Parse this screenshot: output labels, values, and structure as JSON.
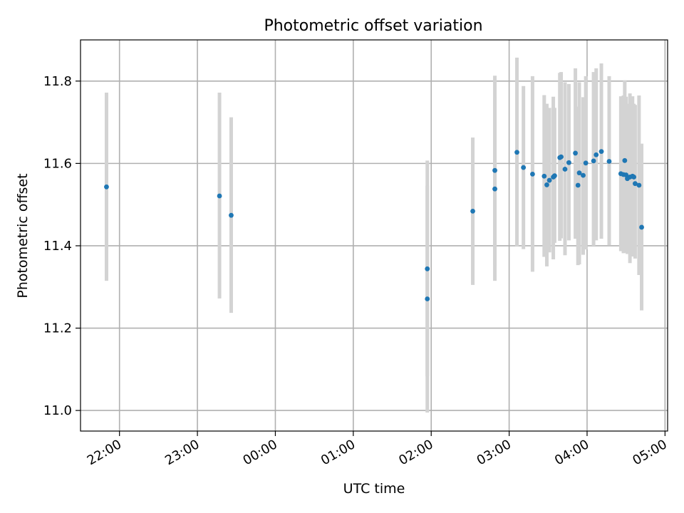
{
  "chart_data": {
    "type": "scatter",
    "title": "Photometric offset variation",
    "xlabel": "UTC time",
    "ylabel": "Photometric offset",
    "x_axis_type": "time",
    "xlim": [
      "21:30",
      "05:02"
    ],
    "ylim": [
      10.95,
      11.9
    ],
    "x_ticks": [
      "22:00",
      "23:00",
      "00:00",
      "01:00",
      "02:00",
      "03:00",
      "04:00",
      "05:00"
    ],
    "y_ticks": [
      "11.0",
      "11.2",
      "11.4",
      "11.6",
      "11.8"
    ],
    "grid": true,
    "colors": {
      "point": "#1f77b4",
      "errorbar": "#d3d3d3",
      "grid": "#b0b0b0",
      "axes": "#000000"
    },
    "series": [
      {
        "points": [
          {
            "x": "21:50",
            "y": 11.543,
            "ylo": 11.315,
            "yhi": 11.772
          },
          {
            "x": "23:17",
            "y": 11.521,
            "ylo": 11.272,
            "yhi": 11.772
          },
          {
            "x": "23:26",
            "y": 11.474,
            "ylo": 11.237,
            "yhi": 11.712
          },
          {
            "x": "01:57",
            "y": 11.271,
            "ylo": 10.995,
            "yhi": 11.546
          },
          {
            "x": "01:57",
            "y": 11.344,
            "ylo": 11.083,
            "yhi": 11.607
          },
          {
            "x": "02:32",
            "y": 11.484,
            "ylo": 11.305,
            "yhi": 11.663
          },
          {
            "x": "02:49",
            "y": 11.538,
            "ylo": 11.315,
            "yhi": 11.761
          },
          {
            "x": "02:49",
            "y": 11.583,
            "ylo": 11.352,
            "yhi": 11.813
          },
          {
            "x": "03:06",
            "y": 11.627,
            "ylo": 11.398,
            "yhi": 11.857
          },
          {
            "x": "03:11",
            "y": 11.59,
            "ylo": 11.392,
            "yhi": 11.788
          },
          {
            "x": "03:18",
            "y": 11.574,
            "ylo": 11.337,
            "yhi": 11.812
          },
          {
            "x": "03:27",
            "y": 11.569,
            "ylo": 11.373,
            "yhi": 11.766
          },
          {
            "x": "03:29",
            "y": 11.548,
            "ylo": 11.35,
            "yhi": 11.745
          },
          {
            "x": "03:31",
            "y": 11.559,
            "ylo": 11.384,
            "yhi": 11.735
          },
          {
            "x": "03:34",
            "y": 11.567,
            "ylo": 11.367,
            "yhi": 11.762
          },
          {
            "x": "03:35",
            "y": 11.57,
            "ylo": 11.407,
            "yhi": 11.735
          },
          {
            "x": "03:39",
            "y": 11.614,
            "ylo": 11.412,
            "yhi": 11.82
          },
          {
            "x": "03:40",
            "y": 11.616,
            "ylo": 11.418,
            "yhi": 11.822
          },
          {
            "x": "03:43",
            "y": 11.586,
            "ylo": 11.377,
            "yhi": 11.797
          },
          {
            "x": "03:46",
            "y": 11.602,
            "ylo": 11.413,
            "yhi": 11.793
          },
          {
            "x": "03:51",
            "y": 11.625,
            "ylo": 11.417,
            "yhi": 11.831
          },
          {
            "x": "03:53",
            "y": 11.547,
            "ylo": 11.353,
            "yhi": 11.738
          },
          {
            "x": "03:54",
            "y": 11.577,
            "ylo": 11.355,
            "yhi": 11.797
          },
          {
            "x": "03:57",
            "y": 11.571,
            "ylo": 11.378,
            "yhi": 11.761
          },
          {
            "x": "03:59",
            "y": 11.601,
            "ylo": 11.391,
            "yhi": 11.812
          },
          {
            "x": "04:05",
            "y": 11.606,
            "ylo": 11.4,
            "yhi": 11.822
          },
          {
            "x": "04:07",
            "y": 11.621,
            "ylo": 11.413,
            "yhi": 11.831
          },
          {
            "x": "04:11",
            "y": 11.629,
            "ylo": 11.417,
            "yhi": 11.843
          },
          {
            "x": "04:17",
            "y": 11.605,
            "ylo": 11.401,
            "yhi": 11.812
          },
          {
            "x": "04:26",
            "y": 11.575,
            "ylo": 11.387,
            "yhi": 11.763
          },
          {
            "x": "04:28",
            "y": 11.573,
            "ylo": 11.382,
            "yhi": 11.765
          },
          {
            "x": "04:29",
            "y": 11.607,
            "ylo": 11.409,
            "yhi": 11.802
          },
          {
            "x": "04:30",
            "y": 11.572,
            "ylo": 11.383,
            "yhi": 11.762
          },
          {
            "x": "04:31",
            "y": 11.563,
            "ylo": 11.38,
            "yhi": 11.745
          },
          {
            "x": "04:33",
            "y": 11.567,
            "ylo": 11.358,
            "yhi": 11.77
          },
          {
            "x": "04:35",
            "y": 11.569,
            "ylo": 11.374,
            "yhi": 11.763
          },
          {
            "x": "04:36",
            "y": 11.567,
            "ylo": 11.374,
            "yhi": 11.745
          },
          {
            "x": "04:37",
            "y": 11.551,
            "ylo": 11.369,
            "yhi": 11.742
          },
          {
            "x": "04:40",
            "y": 11.547,
            "ylo": 11.329,
            "yhi": 11.765
          },
          {
            "x": "04:42",
            "y": 11.445,
            "ylo": 11.243,
            "yhi": 11.648
          }
        ]
      }
    ]
  }
}
